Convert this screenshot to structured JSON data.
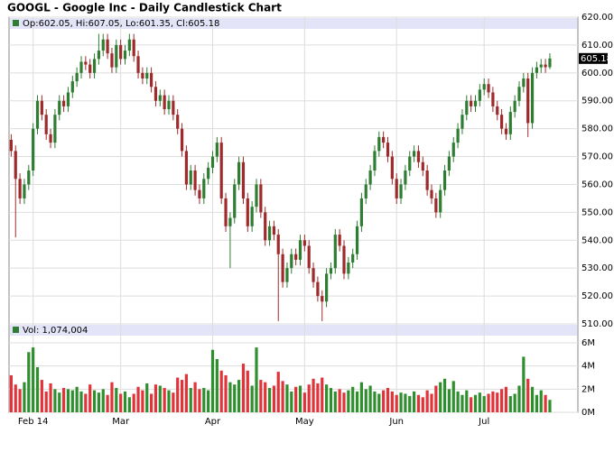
{
  "chart_data": {
    "type": "candlestick",
    "title": "GOOGL - Google Inc - Daily Candlestick Chart",
    "legend_text": "Op:602.05, Hi:607.05, Lo:601.35, Cl:605.18",
    "volume_legend_text": "Vol: 1,074,004",
    "up_color": "#2e7d32",
    "down_color": "#9e2a2b",
    "volume_up_color": "#2f8f2f",
    "volume_down_color": "#e0343a",
    "grid": true,
    "categories": [
      null,
      null,
      null,
      null,
      null,
      "Feb 14",
      null,
      null,
      null,
      null,
      null,
      null,
      null,
      null,
      null,
      null,
      null,
      null,
      null,
      null,
      null,
      null,
      null,
      null,
      null,
      "Mar",
      null,
      null,
      null,
      null,
      null,
      null,
      null,
      null,
      null,
      null,
      null,
      null,
      null,
      null,
      null,
      null,
      null,
      null,
      null,
      null,
      "Apr",
      null,
      null,
      null,
      null,
      null,
      null,
      null,
      null,
      null,
      null,
      null,
      null,
      null,
      null,
      null,
      null,
      null,
      null,
      null,
      null,
      "May",
      null,
      null,
      null,
      null,
      null,
      null,
      null,
      null,
      null,
      null,
      null,
      null,
      null,
      null,
      null,
      null,
      null,
      null,
      null,
      null,
      "Jun",
      null,
      null,
      null,
      null,
      null,
      null,
      null,
      null,
      null,
      null,
      null,
      null,
      null,
      null,
      null,
      null,
      null,
      null,
      null,
      "Jul",
      null,
      null,
      null,
      null,
      null,
      null,
      null,
      null,
      null,
      null,
      null,
      null,
      null,
      null,
      null
    ],
    "open": [
      576,
      572,
      562,
      555,
      560,
      565,
      580,
      590,
      585,
      578,
      575,
      585,
      590,
      588,
      593,
      597,
      600,
      604,
      603,
      600,
      605,
      608,
      612,
      607,
      602,
      610,
      605,
      608,
      612,
      606,
      600,
      598,
      600,
      595,
      590,
      592,
      587,
      590,
      585,
      580,
      572,
      560,
      565,
      558,
      555,
      562,
      566,
      570,
      575,
      555,
      545,
      548,
      560,
      568,
      555,
      545,
      552,
      560,
      550,
      540,
      545,
      542,
      535,
      525,
      530,
      535,
      533,
      540,
      538,
      530,
      525,
      520,
      518,
      528,
      530,
      542,
      538,
      528,
      532,
      535,
      545,
      555,
      560,
      565,
      572,
      577,
      575,
      570,
      562,
      555,
      560,
      565,
      570,
      572,
      568,
      565,
      558,
      555,
      550,
      558,
      565,
      570,
      575,
      580,
      585,
      590,
      588,
      590,
      594,
      596,
      593,
      588,
      585,
      580,
      578,
      586,
      590,
      595,
      598,
      582,
      600,
      602,
      603,
      602.05
    ],
    "high": [
      578,
      574,
      564,
      562,
      567,
      582,
      592,
      592,
      587,
      580,
      587,
      592,
      592,
      595,
      599,
      602,
      606,
      606,
      605,
      607,
      614,
      614,
      614,
      609,
      612,
      612,
      610,
      614,
      614,
      608,
      602,
      602,
      602,
      597,
      594,
      594,
      592,
      592,
      587,
      582,
      574,
      567,
      567,
      560,
      564,
      568,
      572,
      577,
      577,
      557,
      550,
      562,
      570,
      570,
      557,
      554,
      562,
      562,
      552,
      547,
      547,
      544,
      537,
      532,
      537,
      537,
      542,
      542,
      540,
      532,
      527,
      522,
      530,
      532,
      544,
      544,
      540,
      534,
      537,
      547,
      557,
      562,
      567,
      574,
      579,
      579,
      577,
      572,
      564,
      562,
      567,
      572,
      574,
      574,
      570,
      567,
      560,
      557,
      560,
      567,
      572,
      577,
      582,
      587,
      592,
      592,
      592,
      596,
      598,
      598,
      595,
      590,
      587,
      582,
      588,
      592,
      597,
      600,
      600,
      602,
      604,
      605,
      605,
      607.05
    ],
    "low": [
      570,
      541,
      553,
      553,
      558,
      563,
      578,
      583,
      576,
      573,
      573,
      583,
      586,
      586,
      591,
      595,
      598,
      601,
      598,
      598,
      603,
      606,
      605,
      600,
      600,
      603,
      603,
      606,
      604,
      598,
      596,
      596,
      593,
      588,
      588,
      585,
      585,
      583,
      578,
      570,
      558,
      558,
      556,
      553,
      553,
      560,
      564,
      568,
      553,
      543,
      530,
      546,
      558,
      553,
      543,
      543,
      550,
      548,
      538,
      538,
      540,
      511,
      523,
      523,
      528,
      531,
      531,
      536,
      528,
      523,
      518,
      511,
      516,
      526,
      528,
      536,
      526,
      526,
      530,
      533,
      543,
      553,
      558,
      563,
      570,
      573,
      568,
      560,
      553,
      553,
      558,
      563,
      568,
      566,
      563,
      556,
      553,
      548,
      548,
      556,
      563,
      568,
      573,
      578,
      583,
      586,
      586,
      588,
      592,
      591,
      586,
      583,
      578,
      576,
      576,
      584,
      588,
      593,
      577,
      580,
      598,
      600,
      600,
      601.35
    ],
    "close": [
      572,
      562,
      555,
      560,
      565,
      580,
      590,
      585,
      578,
      575,
      585,
      590,
      588,
      593,
      597,
      600,
      604,
      603,
      600,
      605,
      608,
      612,
      607,
      602,
      610,
      605,
      608,
      612,
      606,
      600,
      598,
      600,
      595,
      590,
      592,
      587,
      590,
      585,
      580,
      572,
      560,
      565,
      558,
      555,
      562,
      566,
      570,
      575,
      555,
      545,
      548,
      560,
      568,
      555,
      545,
      552,
      560,
      550,
      540,
      545,
      542,
      535,
      525,
      530,
      535,
      533,
      540,
      538,
      530,
      525,
      520,
      518,
      528,
      530,
      542,
      538,
      528,
      532,
      535,
      545,
      555,
      560,
      565,
      572,
      577,
      575,
      570,
      562,
      555,
      560,
      565,
      570,
      572,
      568,
      565,
      558,
      555,
      550,
      558,
      565,
      570,
      575,
      580,
      585,
      590,
      588,
      590,
      594,
      596,
      593,
      588,
      585,
      580,
      578,
      586,
      590,
      595,
      598,
      582,
      600,
      602,
      603,
      602.05,
      605.18
    ],
    "volume": [
      3.2,
      2.4,
      2.0,
      2.6,
      5.2,
      5.6,
      3.9,
      2.8,
      1.8,
      2.5,
      2.0,
      1.7,
      2.1,
      2.0,
      1.9,
      2.2,
      1.8,
      1.6,
      2.4,
      1.9,
      1.7,
      2.0,
      1.5,
      2.6,
      2.1,
      1.6,
      1.8,
      1.3,
      1.6,
      2.2,
      1.9,
      2.5,
      1.6,
      2.4,
      2.3,
      2.1,
      1.9,
      1.7,
      3.0,
      2.8,
      3.3,
      2.1,
      2.6,
      2.0,
      2.1,
      1.9,
      5.4,
      4.6,
      3.6,
      3.2,
      2.6,
      2.4,
      2.8,
      4.2,
      3.6,
      2.3,
      5.6,
      2.8,
      2.6,
      2.1,
      2.3,
      3.5,
      2.7,
      2.4,
      1.8,
      2.2,
      2.3,
      1.7,
      2.4,
      2.9,
      2.5,
      3.0,
      2.4,
      2.1,
      1.8,
      2.0,
      1.7,
      1.9,
      2.2,
      1.8,
      2.6,
      2.0,
      2.3,
      1.8,
      1.6,
      1.9,
      2.1,
      1.8,
      1.5,
      1.7,
      1.6,
      1.4,
      1.8,
      1.5,
      1.3,
      1.9,
      1.6,
      2.3,
      2.6,
      2.9,
      2.0,
      2.7,
      1.8,
      1.5,
      1.9,
      1.3,
      1.5,
      1.7,
      1.4,
      1.6,
      1.8,
      1.7,
      2.0,
      2.2,
      1.4,
      1.6,
      2.3,
      4.8,
      2.9,
      2.2,
      1.5,
      1.9,
      1.5,
      1.074004
    ],
    "ylim": [
      510,
      620
    ],
    "yticks": [
      {
        "value": 510,
        "label": "510.00"
      },
      {
        "value": 520,
        "label": "520.00"
      },
      {
        "value": 530,
        "label": "530.00"
      },
      {
        "value": 540,
        "label": "540.00"
      },
      {
        "value": 550,
        "label": "550.00"
      },
      {
        "value": 560,
        "label": "560.00"
      },
      {
        "value": 570,
        "label": "570.00"
      },
      {
        "value": 580,
        "label": "580.00"
      },
      {
        "value": 590,
        "label": "590.00"
      },
      {
        "value": 600,
        "label": "600.00"
      },
      {
        "value": 610,
        "label": "610.00"
      },
      {
        "value": 620,
        "label": "620.00"
      }
    ],
    "y2lim": [
      0,
      6
    ],
    "y2ticks": [
      {
        "value": 0,
        "label": "0M"
      },
      {
        "value": 2,
        "label": "2M"
      },
      {
        "value": 4,
        "label": "4M"
      },
      {
        "value": 6,
        "label": "6M"
      }
    ]
  }
}
